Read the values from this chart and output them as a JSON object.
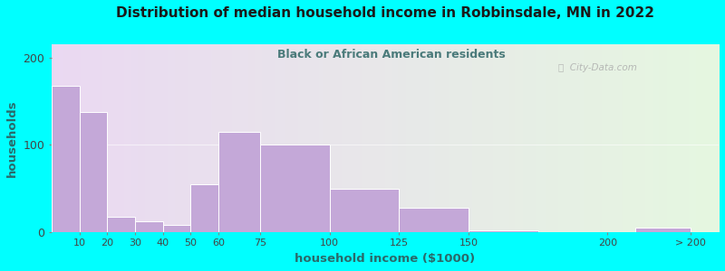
{
  "title": "Distribution of median household income in Robbinsdale, MN in 2022",
  "subtitle": "Black or African American residents",
  "xlabel": "household income ($1000)",
  "ylabel": "households",
  "background_outer": "#00FFFF",
  "bar_color": "#c4a8d8",
  "title_color": "#1a1a1a",
  "subtitle_color": "#4a7a7a",
  "axis_label_color": "#2a6a6a",
  "tick_label_color": "#444444",
  "watermark": "ⓘ  City-Data.com",
  "positions": [
    5,
    15,
    25,
    35,
    45,
    55,
    67.5,
    87.5,
    112.5,
    137.5,
    175,
    220
  ],
  "left_edges": [
    0,
    10,
    20,
    30,
    40,
    50,
    60,
    75,
    100,
    125,
    150,
    210
  ],
  "widths": [
    10,
    10,
    10,
    10,
    10,
    10,
    15,
    25,
    25,
    25,
    25,
    20
  ],
  "values": [
    168,
    138,
    18,
    12,
    8,
    55,
    115,
    100,
    50,
    28,
    2,
    5
  ],
  "ylim": [
    0,
    215
  ],
  "yticks": [
    0,
    100,
    200
  ],
  "xtick_positions": [
    10,
    20,
    30,
    40,
    50,
    60,
    75,
    100,
    125,
    150,
    200,
    230
  ],
  "xtick_labels": [
    "10",
    "20",
    "30",
    "40",
    "50",
    "60",
    "75",
    "100",
    "125",
    "150",
    "200",
    "> 200"
  ],
  "xlim": [
    0,
    240
  ],
  "figsize": [
    8.0,
    3.0
  ],
  "dpi": 100
}
